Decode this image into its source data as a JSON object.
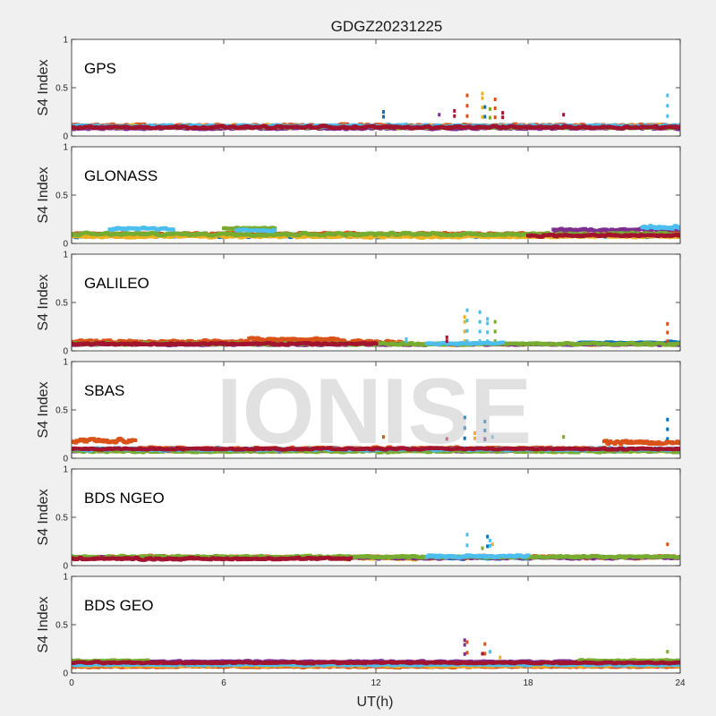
{
  "figure": {
    "title": "GDGZ20231225",
    "watermark": "IONISE",
    "xlabel": "UT(h)",
    "ylabel": "S4 Index",
    "background": "#f0f0f0",
    "axes_background": "#ffffff"
  },
  "chart_data": [
    {
      "type": "scatter",
      "panel_label": "GPS",
      "xlim": [
        0,
        24
      ],
      "ylim": [
        0,
        1
      ],
      "x_ticks": [
        0,
        6,
        12,
        18,
        24
      ],
      "y_ticks": [
        0,
        0.5,
        1
      ],
      "y_tick_labels": [
        "0",
        "0.5",
        "1"
      ],
      "show_x_tick_labels": false,
      "series": [
        {
          "color": "#0072BD",
          "segments": [
            [
              0,
              24,
              0.08,
              0.12
            ]
          ],
          "spikes": [
            [
              12.3,
              0.25
            ],
            [
              16.3,
              0.3
            ]
          ]
        },
        {
          "color": "#D95319",
          "segments": [
            [
              0,
              24,
              0.08,
              0.13
            ]
          ],
          "spikes": [
            [
              15.6,
              0.42
            ],
            [
              16.7,
              0.38
            ]
          ]
        },
        {
          "color": "#EDB120",
          "segments": [
            [
              0,
              24,
              0.07,
              0.12
            ]
          ],
          "spikes": [
            [
              16.2,
              0.44
            ],
            [
              23.2,
              0.12
            ]
          ]
        },
        {
          "color": "#7E2F8E",
          "segments": [
            [
              0,
              24,
              0.06,
              0.1
            ]
          ],
          "spikes": [
            [
              14.5,
              0.22
            ]
          ]
        },
        {
          "color": "#77AC30",
          "segments": [
            [
              0,
              24,
              0.07,
              0.11
            ]
          ],
          "spikes": [
            [
              16.5,
              0.28
            ]
          ]
        },
        {
          "color": "#4DBEEE",
          "segments": [
            [
              0,
              24,
              0.08,
              0.12
            ]
          ],
          "spikes": [
            [
              23.5,
              0.42
            ],
            [
              13.2,
              0.12
            ]
          ]
        },
        {
          "color": "#A2142F",
          "segments": [
            [
              0,
              24,
              0.07,
              0.11
            ]
          ],
          "spikes": [
            [
              15.1,
              0.26
            ],
            [
              19.4,
              0.22
            ],
            [
              17,
              0.24
            ]
          ]
        }
      ]
    },
    {
      "type": "scatter",
      "panel_label": "GLONASS",
      "xlim": [
        0,
        24
      ],
      "ylim": [
        0,
        1
      ],
      "x_ticks": [
        0,
        6,
        12,
        18,
        24
      ],
      "y_ticks": [
        0,
        0.5,
        1
      ],
      "y_tick_labels": [
        "0",
        "0.5",
        "1"
      ],
      "show_x_tick_labels": false,
      "series": [
        {
          "color": "#0072BD",
          "segments": [
            [
              0,
              24,
              0.05,
              0.11
            ]
          ],
          "spikes": []
        },
        {
          "color": "#D95319",
          "segments": [
            [
              0,
              24,
              0.07,
              0.12
            ]
          ],
          "spikes": []
        },
        {
          "color": "#EDB120",
          "segments": [
            [
              0,
              24,
              0.05,
              0.09
            ]
          ],
          "spikes": []
        },
        {
          "color": "#7E2F8E",
          "segments": [
            [
              19,
              24,
              0.12,
              0.16
            ]
          ],
          "spikes": []
        },
        {
          "color": "#77AC30",
          "segments": [
            [
              0,
              24,
              0.07,
              0.12
            ],
            [
              6,
              8,
              0.14,
              0.17
            ]
          ],
          "spikes": []
        },
        {
          "color": "#4DBEEE",
          "segments": [
            [
              1.5,
              4,
              0.13,
              0.17
            ],
            [
              6.5,
              8,
              0.12,
              0.15
            ],
            [
              22.5,
              24,
              0.13,
              0.2
            ]
          ],
          "spikes": []
        },
        {
          "color": "#A2142F",
          "segments": [
            [
              18,
              24,
              0.06,
              0.1
            ]
          ],
          "spikes": []
        }
      ]
    },
    {
      "type": "scatter",
      "panel_label": "GALILEO",
      "xlim": [
        0,
        24
      ],
      "ylim": [
        0,
        1
      ],
      "x_ticks": [
        0,
        6,
        12,
        18,
        24
      ],
      "y_ticks": [
        0,
        0.5,
        1
      ],
      "y_tick_labels": [
        "0",
        "0.5",
        "1"
      ],
      "show_x_tick_labels": false,
      "series": [
        {
          "color": "#0072BD",
          "segments": [
            [
              20,
              24,
              0.06,
              0.1
            ]
          ],
          "spikes": []
        },
        {
          "color": "#D95319",
          "segments": [
            [
              0,
              13,
              0.06,
              0.12
            ],
            [
              7,
              10.5,
              0.1,
              0.14
            ]
          ],
          "spikes": [
            [
              23.5,
              0.28
            ]
          ]
        },
        {
          "color": "#EDB120",
          "segments": [
            [
              12,
              24,
              0.05,
              0.08
            ]
          ],
          "spikes": [
            [
              15.5,
              0.35
            ]
          ]
        },
        {
          "color": "#7E2F8E",
          "segments": [
            [
              0,
              24,
              0.05,
              0.08
            ]
          ],
          "spikes": []
        },
        {
          "color": "#77AC30",
          "segments": [
            [
              0,
              24,
              0.05,
              0.09
            ]
          ],
          "spikes": [
            [
              16.7,
              0.3
            ]
          ]
        },
        {
          "color": "#4DBEEE",
          "segments": [
            [
              14,
              17,
              0.06,
              0.09
            ]
          ],
          "spikes": [
            [
              15.6,
              0.42
            ],
            [
              16.1,
              0.4
            ],
            [
              16.4,
              0.33
            ],
            [
              13.2,
              0.12
            ]
          ]
        },
        {
          "color": "#A2142F",
          "segments": [
            [
              0,
              12,
              0.05,
              0.09
            ]
          ],
          "spikes": [
            [
              14.8,
              0.14
            ]
          ]
        }
      ]
    },
    {
      "type": "scatter",
      "panel_label": "SBAS",
      "xlim": [
        0,
        24
      ],
      "ylim": [
        0,
        1
      ],
      "x_ticks": [
        0,
        6,
        12,
        18,
        24
      ],
      "y_ticks": [
        0,
        0.5,
        1
      ],
      "y_tick_labels": [
        "0",
        "0.5",
        "1"
      ],
      "show_x_tick_labels": false,
      "series": [
        {
          "color": "#0072BD",
          "segments": [
            [
              0,
              24,
              0.07,
              0.11
            ]
          ],
          "spikes": [
            [
              15.5,
              0.42
            ],
            [
              16.3,
              0.38
            ],
            [
              23.5,
              0.4
            ]
          ]
        },
        {
          "color": "#D95319",
          "segments": [
            [
              0,
              2.5,
              0.13,
              0.22
            ],
            [
              2.5,
              21,
              0.08,
              0.12
            ],
            [
              21,
              24,
              0.12,
              0.2
            ]
          ],
          "spikes": [
            [
              12.3,
              0.22
            ]
          ]
        },
        {
          "color": "#EDB120",
          "segments": [
            [
              0,
              24,
              0.06,
              0.09
            ]
          ],
          "spikes": [
            [
              15.9,
              0.26
            ]
          ]
        },
        {
          "color": "#7E2F8E",
          "segments": [
            [
              0,
              24,
              0.06,
              0.09
            ]
          ],
          "spikes": [
            [
              16.3,
              0.2
            ]
          ]
        },
        {
          "color": "#77AC30",
          "segments": [
            [
              0,
              24,
              0.05,
              0.09
            ]
          ],
          "spikes": [
            [
              19.4,
              0.22
            ]
          ]
        },
        {
          "color": "#4DBEEE",
          "segments": [
            [
              0,
              24,
              0.07,
              0.11
            ]
          ],
          "spikes": [
            [
              16.6,
              0.22
            ]
          ]
        },
        {
          "color": "#A2142F",
          "segments": [
            [
              0,
              24,
              0.08,
              0.11
            ]
          ],
          "spikes": [
            [
              14.8,
              0.2
            ]
          ]
        }
      ]
    },
    {
      "type": "scatter",
      "panel_label": "BDS NGEO",
      "xlim": [
        0,
        24
      ],
      "ylim": [
        0,
        1
      ],
      "x_ticks": [
        0,
        6,
        12,
        18,
        24
      ],
      "y_ticks": [
        0,
        0.5,
        1
      ],
      "y_tick_labels": [
        "0",
        "0.5",
        "1"
      ],
      "show_x_tick_labels": false,
      "series": [
        {
          "color": "#0072BD",
          "segments": [
            [
              14,
              18,
              0.06,
              0.1
            ]
          ],
          "spikes": [
            [
              16.4,
              0.3
            ]
          ]
        },
        {
          "color": "#D95319",
          "segments": [
            [
              0,
              24,
              0.06,
              0.11
            ]
          ],
          "spikes": [
            [
              23.5,
              0.22
            ]
          ]
        },
        {
          "color": "#EDB120",
          "segments": [
            [
              10.5,
              14,
              0.05,
              0.1
            ]
          ],
          "spikes": [
            [
              16.6,
              0.22
            ]
          ]
        },
        {
          "color": "#7E2F8E",
          "segments": [
            [
              0,
              24,
              0.06,
              0.1
            ]
          ],
          "spikes": []
        },
        {
          "color": "#77AC30",
          "segments": [
            [
              0,
              24,
              0.07,
              0.11
            ]
          ],
          "spikes": [
            [
              16.2,
              0.18
            ]
          ]
        },
        {
          "color": "#4DBEEE",
          "segments": [
            [
              14,
              18,
              0.07,
              0.12
            ]
          ],
          "spikes": [
            [
              15.6,
              0.32
            ],
            [
              16.5,
              0.26
            ]
          ]
        },
        {
          "color": "#A2142F",
          "segments": [
            [
              0,
              11,
              0.05,
              0.09
            ]
          ],
          "spikes": []
        }
      ]
    },
    {
      "type": "scatter",
      "panel_label": "BDS GEO",
      "xlim": [
        0,
        24
      ],
      "ylim": [
        0,
        1
      ],
      "x_ticks": [
        0,
        6,
        12,
        18,
        24
      ],
      "x_tick_labels": [
        "0",
        "6",
        "12",
        "18",
        "24"
      ],
      "y_ticks": [
        0,
        0.5,
        1
      ],
      "y_tick_labels": [
        "0",
        "0.5",
        "1"
      ],
      "show_x_tick_labels": true,
      "series": [
        {
          "color": "#0072BD",
          "segments": [
            [
              0,
              24,
              0.08,
              0.1
            ]
          ],
          "spikes": []
        },
        {
          "color": "#D95319",
          "segments": [
            [
              0,
              24,
              0.05,
              0.08
            ]
          ],
          "spikes": [
            [
              15.6,
              0.32
            ],
            [
              16.3,
              0.3
            ]
          ]
        },
        {
          "color": "#EDB120",
          "segments": [
            [
              0,
              24,
              0.06,
              0.09
            ]
          ],
          "spikes": [
            [
              16.9,
              0.16
            ]
          ]
        },
        {
          "color": "#7E2F8E",
          "segments": [
            [
              0,
              24,
              0.1,
              0.13
            ]
          ],
          "spikes": [
            [
              15.5,
              0.34
            ]
          ]
        },
        {
          "color": "#77AC30",
          "segments": [
            [
              0,
              3,
              0.11,
              0.14
            ],
            [
              20,
              24,
              0.11,
              0.14
            ]
          ],
          "spikes": [
            [
              23.5,
              0.22
            ]
          ]
        },
        {
          "color": "#4DBEEE",
          "segments": [
            [
              0,
              24,
              0.07,
              0.1
            ]
          ],
          "spikes": [
            [
              16.5,
              0.22
            ]
          ]
        },
        {
          "color": "#A2142F",
          "segments": [
            [
              0,
              24,
              0.09,
              0.12
            ]
          ],
          "spikes": [
            [
              16.2,
              0.2
            ]
          ]
        }
      ]
    }
  ]
}
